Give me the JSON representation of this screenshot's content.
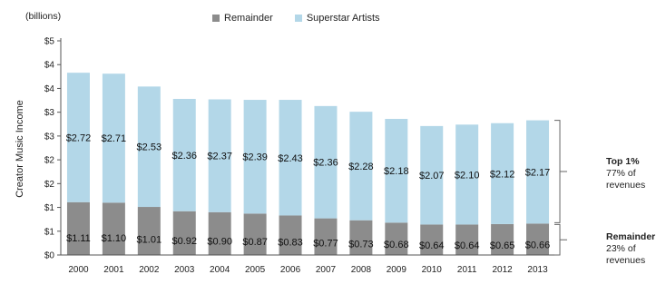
{
  "chart_data": {
    "type": "bar",
    "stacked": true,
    "unit_note": "(billions)",
    "ylabel": "Creator Music Income",
    "xlabel": "",
    "categories": [
      "2000",
      "2001",
      "2002",
      "2003",
      "2004",
      "2005",
      "2006",
      "2007",
      "2008",
      "2009",
      "2010",
      "2011",
      "2012",
      "2013"
    ],
    "series": [
      {
        "name": "Remainder",
        "color": "#8c8c8c",
        "values": [
          1.11,
          1.1,
          1.01,
          0.92,
          0.9,
          0.87,
          0.83,
          0.77,
          0.73,
          0.68,
          0.64,
          0.64,
          0.65,
          0.66
        ],
        "labels": [
          "$1.11",
          "$1.10",
          "$1.01",
          "$0.92",
          "$0.90",
          "$0.87",
          "$0.83",
          "$0.77",
          "$0.73",
          "$0.68",
          "$0.64",
          "$0.64",
          "$0.65",
          "$0.66"
        ]
      },
      {
        "name": "Superstar Artists",
        "color": "#b3d7e8",
        "values": [
          2.72,
          2.71,
          2.53,
          2.36,
          2.37,
          2.39,
          2.43,
          2.36,
          2.28,
          2.18,
          2.07,
          2.1,
          2.12,
          2.17
        ],
        "labels": [
          "$2.72",
          "$2.71",
          "$2.53",
          "$2.36",
          "$2.37",
          "$2.39",
          "$2.43",
          "$2.36",
          "$2.28",
          "$2.18",
          "$2.07",
          "$2.10",
          "$2.12",
          "$2.17"
        ]
      }
    ],
    "ylim": [
      0,
      4.5
    ],
    "yticks": [
      0,
      0.5,
      1,
      1.5,
      2,
      2.5,
      3,
      3.5,
      4,
      4.5
    ],
    "ytick_labels": [
      "$0",
      "$1",
      "$1",
      "$2",
      "$2",
      "$3",
      "$3",
      "$4",
      "$4",
      "$5"
    ],
    "legend_position": "top-center",
    "grid": false,
    "annotations": {
      "top": {
        "title": "Top 1%",
        "line1": "77% of",
        "line2": "revenues"
      },
      "bottom": {
        "title": "Remainder",
        "line1": "23% of",
        "line2": "revenues"
      }
    }
  }
}
